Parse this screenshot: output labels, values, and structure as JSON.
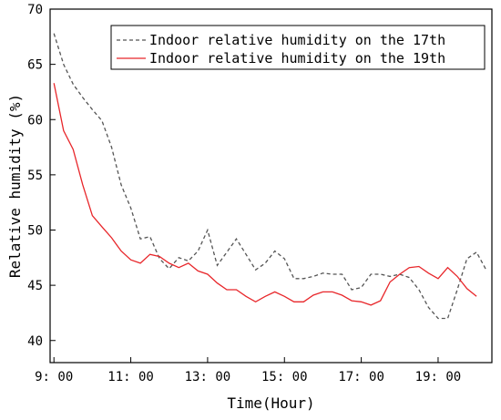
{
  "chart_data": {
    "type": "line",
    "title": "",
    "xlabel": "Time(Hour)",
    "ylabel": "Relative humidity (%)",
    "xlim": [
      8.9,
      20.4
    ],
    "ylim": [
      38,
      70
    ],
    "x_ticks": [
      {
        "value": 9,
        "label": "9: 00"
      },
      {
        "value": 11,
        "label": "11: 00"
      },
      {
        "value": 13,
        "label": "13: 00"
      },
      {
        "value": 15,
        "label": "15: 00"
      },
      {
        "value": 17,
        "label": "17: 00"
      },
      {
        "value": 19,
        "label": "19: 00"
      }
    ],
    "y_ticks": [
      40,
      45,
      50,
      55,
      60,
      65,
      70
    ],
    "grid": false,
    "legend_position": "top-right",
    "series": [
      {
        "name": "Indoor relative humidity on the 17th",
        "color": "#555555",
        "dash": "dashed",
        "points": [
          [
            9.0,
            67.8
          ],
          [
            9.25,
            65.0
          ],
          [
            9.5,
            63.2
          ],
          [
            9.75,
            62.0
          ],
          [
            10.0,
            60.9
          ],
          [
            10.25,
            59.9
          ],
          [
            10.5,
            57.5
          ],
          [
            10.75,
            54.1
          ],
          [
            11.0,
            52.0
          ],
          [
            11.25,
            49.2
          ],
          [
            11.5,
            49.4
          ],
          [
            11.75,
            47.4
          ],
          [
            12.0,
            46.5
          ],
          [
            12.25,
            47.5
          ],
          [
            12.5,
            47.2
          ],
          [
            12.75,
            48.1
          ],
          [
            13.0,
            50.0
          ],
          [
            13.25,
            46.8
          ],
          [
            13.5,
            48.0
          ],
          [
            13.75,
            49.2
          ],
          [
            14.0,
            47.8
          ],
          [
            14.25,
            46.4
          ],
          [
            14.5,
            47.0
          ],
          [
            14.75,
            48.1
          ],
          [
            15.0,
            47.4
          ],
          [
            15.25,
            45.6
          ],
          [
            15.5,
            45.6
          ],
          [
            15.75,
            45.8
          ],
          [
            16.0,
            46.1
          ],
          [
            16.25,
            46.0
          ],
          [
            16.5,
            46.0
          ],
          [
            16.75,
            44.6
          ],
          [
            17.0,
            44.8
          ],
          [
            17.25,
            46.0
          ],
          [
            17.5,
            46.0
          ],
          [
            17.75,
            45.8
          ],
          [
            18.0,
            46.0
          ],
          [
            18.25,
            45.7
          ],
          [
            18.5,
            44.6
          ],
          [
            18.75,
            43.0
          ],
          [
            19.0,
            42.0
          ],
          [
            19.25,
            42.0
          ],
          [
            19.5,
            44.6
          ],
          [
            19.75,
            47.4
          ],
          [
            20.0,
            48.0
          ],
          [
            20.25,
            46.4
          ]
        ]
      },
      {
        "name": "Indoor relative humidity on the 19th",
        "color": "#e8262a",
        "dash": "solid",
        "points": [
          [
            9.0,
            63.3
          ],
          [
            9.25,
            59.0
          ],
          [
            9.5,
            57.3
          ],
          [
            9.75,
            54.1
          ],
          [
            10.0,
            51.3
          ],
          [
            10.25,
            50.3
          ],
          [
            10.5,
            49.3
          ],
          [
            10.75,
            48.1
          ],
          [
            11.0,
            47.3
          ],
          [
            11.25,
            47.0
          ],
          [
            11.5,
            47.8
          ],
          [
            11.75,
            47.6
          ],
          [
            12.0,
            47.0
          ],
          [
            12.25,
            46.6
          ],
          [
            12.5,
            47.0
          ],
          [
            12.75,
            46.3
          ],
          [
            13.0,
            46.0
          ],
          [
            13.25,
            45.2
          ],
          [
            13.5,
            44.6
          ],
          [
            13.75,
            44.6
          ],
          [
            14.0,
            44.0
          ],
          [
            14.25,
            43.5
          ],
          [
            14.5,
            44.0
          ],
          [
            14.75,
            44.4
          ],
          [
            15.0,
            44.0
          ],
          [
            15.25,
            43.5
          ],
          [
            15.5,
            43.5
          ],
          [
            15.75,
            44.1
          ],
          [
            16.0,
            44.4
          ],
          [
            16.25,
            44.4
          ],
          [
            16.5,
            44.1
          ],
          [
            16.75,
            43.6
          ],
          [
            17.0,
            43.5
          ],
          [
            17.25,
            43.2
          ],
          [
            17.5,
            43.6
          ],
          [
            17.75,
            45.3
          ],
          [
            18.0,
            46.0
          ],
          [
            18.25,
            46.6
          ],
          [
            18.5,
            46.7
          ],
          [
            18.75,
            46.1
          ],
          [
            19.0,
            45.6
          ],
          [
            19.25,
            46.6
          ],
          [
            19.5,
            45.8
          ],
          [
            19.75,
            44.7
          ],
          [
            20.0,
            44.0
          ]
        ]
      }
    ]
  }
}
